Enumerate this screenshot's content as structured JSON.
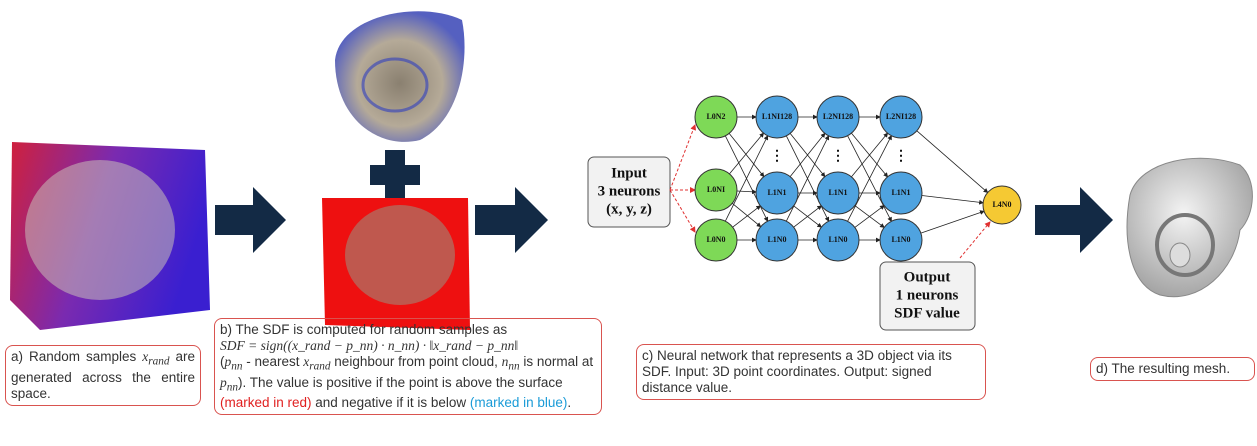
{
  "captions": {
    "a": [
      {
        "t": "a) Random samples "
      },
      {
        "var": "x",
        "sub": "rand"
      },
      {
        "t": " are generated across the entire space."
      }
    ],
    "b": [
      {
        "t": "b) The SDF is computed for random samples as"
      },
      {
        "formula": "SDF = sign((x_rand − p_nn) · n_nn) · ‖x_rand − p_nn‖"
      },
      {
        "t": "("
      },
      {
        "var": "p",
        "sub": "nn"
      },
      {
        "t": " - nearest "
      },
      {
        "var": "x",
        "sub": "rand"
      },
      {
        "t": " neighbour from point cloud, "
      },
      {
        "var": "n",
        "sub": "nn"
      },
      {
        "t": " is normal at "
      },
      {
        "var": "p",
        "sub": "nn"
      },
      {
        "t": "). The value is positive if the point is above the surface "
      },
      {
        "t": "(marked in red)",
        "color": "#e02020"
      },
      {
        "t": " and negative if it is below "
      },
      {
        "t": "(marked in blue)",
        "color": "#1a9bd7"
      },
      {
        "t": "."
      }
    ],
    "c": [
      {
        "t": "c) Neural network that represents a 3D object via its SDF. Input: 3D point coordinates. Output: signed distance value."
      }
    ],
    "d": [
      {
        "t": "d) The resulting mesh."
      }
    ]
  },
  "network": {
    "input": [
      "Input",
      "3 neurons",
      "(x, y, z)"
    ],
    "output": [
      "Output",
      "1 neurons",
      "SDF value"
    ],
    "layers": [
      [
        "L0N2",
        "L0NI",
        "L0N0"
      ],
      [
        "L1NI128",
        "L1N1",
        "L1N0"
      ],
      [
        "L2NI128",
        "L1N1",
        "L1N0"
      ],
      [
        "L2NI128",
        "L1N1",
        "L1N0"
      ]
    ],
    "ellipsis": "⋮",
    "output_node": "L4N0"
  }
}
